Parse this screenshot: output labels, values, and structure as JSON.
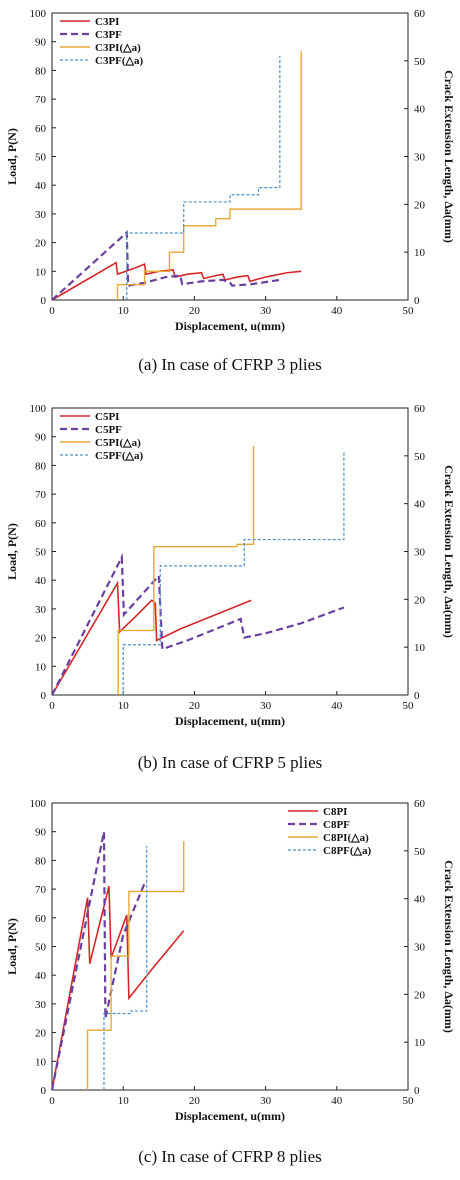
{
  "chart_data": [
    {
      "type": "line",
      "caption": "(a) In case of CFRP 3 plies",
      "xlabel": "Displacement, u(mm)",
      "ylabel": "Load, P(N)",
      "y2label": "Crack Extension Length, Δa(mm)",
      "xlim": [
        0,
        50
      ],
      "ylim": [
        0,
        100
      ],
      "y2lim": [
        0,
        60
      ],
      "xticks": [
        0,
        10,
        20,
        30,
        40,
        50
      ],
      "yticks": [
        0,
        10,
        20,
        30,
        40,
        50,
        60,
        70,
        80,
        90,
        100
      ],
      "y2ticks": [
        0,
        10,
        20,
        30,
        40,
        50,
        60
      ],
      "grid": false,
      "legend": "top-left",
      "series": [
        {
          "name": "C3PI",
          "axis": "left",
          "color": "#d62728",
          "style": "solid",
          "width": 1.6,
          "points": [
            [
              0,
              0
            ],
            [
              9,
              13
            ],
            [
              9.2,
              9
            ],
            [
              11.5,
              11
            ],
            [
              13,
              12.5
            ],
            [
              13.2,
              9
            ],
            [
              15,
              10
            ],
            [
              17,
              10.5
            ],
            [
              17.3,
              8
            ],
            [
              19,
              9
            ],
            [
              21,
              9.5
            ],
            [
              21.3,
              7.5
            ],
            [
              23,
              8.5
            ],
            [
              24,
              9
            ],
            [
              24.3,
              7
            ],
            [
              26,
              8
            ],
            [
              27.5,
              8.5
            ],
            [
              27.8,
              6.5
            ],
            [
              30,
              8
            ],
            [
              33,
              9.5
            ],
            [
              35,
              10
            ]
          ]
        },
        {
          "name": "C3PF",
          "axis": "left",
          "color": "#6b3fa0",
          "style": "dash",
          "width": 2.2,
          "points": [
            [
              0,
              0
            ],
            [
              10.5,
              23.5
            ],
            [
              10.7,
              5
            ],
            [
              13,
              6
            ],
            [
              16,
              8
            ],
            [
              18,
              8.5
            ],
            [
              18.3,
              5.5
            ],
            [
              21,
              6.5
            ],
            [
              24,
              7
            ],
            [
              25,
              6
            ],
            [
              25.3,
              5
            ],
            [
              28,
              5.5
            ],
            [
              32,
              7
            ]
          ]
        },
        {
          "name": "C3PI(△a)",
          "axis": "right",
          "color": "#e8a838",
          "style": "solid",
          "width": 1.4,
          "points": [
            [
              9.2,
              0
            ],
            [
              9.2,
              3.2
            ],
            [
              13,
              3.2
            ],
            [
              13,
              6
            ],
            [
              16.5,
              6
            ],
            [
              16.5,
              10
            ],
            [
              18.5,
              10
            ],
            [
              18.5,
              15.5
            ],
            [
              23,
              15.5
            ],
            [
              23,
              17
            ],
            [
              25,
              17
            ],
            [
              25,
              19
            ],
            [
              35,
              19
            ],
            [
              35,
              52
            ]
          ]
        },
        {
          "name": "C3PF(△a)",
          "axis": "right",
          "color": "#4a90c8",
          "style": "dot",
          "width": 1.2,
          "points": [
            [
              10.5,
              0
            ],
            [
              10.5,
              14
            ],
            [
              18.5,
              14
            ],
            [
              18.5,
              20.5
            ],
            [
              25,
              20.5
            ],
            [
              25,
              22
            ],
            [
              29,
              22
            ],
            [
              29,
              23.5
            ],
            [
              32,
              23.5
            ],
            [
              32,
              51
            ]
          ]
        }
      ]
    },
    {
      "type": "line",
      "caption": "(b) In case of CFRP 5 plies",
      "xlabel": "Displacement, u(mm)",
      "ylabel": "Load, P(N)",
      "y2label": "Crack Extension Length, Δa(mm)",
      "xlim": [
        0,
        50
      ],
      "ylim": [
        0,
        100
      ],
      "y2lim": [
        0,
        60
      ],
      "xticks": [
        0,
        10,
        20,
        30,
        40,
        50
      ],
      "yticks": [
        0,
        10,
        20,
        30,
        40,
        50,
        60,
        70,
        80,
        90,
        100
      ],
      "y2ticks": [
        0,
        10,
        20,
        30,
        40,
        50,
        60
      ],
      "grid": false,
      "legend": "top-left",
      "series": [
        {
          "name": "C5PI",
          "axis": "left",
          "color": "#d62728",
          "style": "solid",
          "width": 1.6,
          "points": [
            [
              0,
              0
            ],
            [
              9.2,
              39
            ],
            [
              9.5,
              22
            ],
            [
              12,
              28
            ],
            [
              14,
              33
            ],
            [
              14.5,
              32
            ],
            [
              14.7,
              19
            ],
            [
              18,
              23
            ],
            [
              22,
              27
            ],
            [
              26,
              31
            ],
            [
              28,
              33
            ]
          ]
        },
        {
          "name": "C5PF",
          "axis": "left",
          "color": "#6b3fa0",
          "style": "dash",
          "width": 2.2,
          "points": [
            [
              0,
              0
            ],
            [
              9.8,
              48
            ],
            [
              10.1,
              28
            ],
            [
              13,
              36
            ],
            [
              15,
              41.5
            ],
            [
              15.5,
              16
            ],
            [
              19,
              19
            ],
            [
              23,
              23
            ],
            [
              26.5,
              26.5
            ],
            [
              27,
              20
            ],
            [
              30,
              21.5
            ],
            [
              35,
              25
            ],
            [
              41,
              30.5
            ]
          ]
        },
        {
          "name": "C5PI(△a)",
          "axis": "right",
          "color": "#e8a838",
          "style": "solid",
          "width": 1.4,
          "points": [
            [
              9.3,
              0
            ],
            [
              9.3,
              13.5
            ],
            [
              14.3,
              13.5
            ],
            [
              14.3,
              31
            ],
            [
              26,
              31
            ],
            [
              26,
              31.5
            ],
            [
              28.3,
              31.5
            ],
            [
              28.3,
              52
            ]
          ]
        },
        {
          "name": "C5PF(△a)",
          "axis": "right",
          "color": "#4a90c8",
          "style": "dot",
          "width": 1.2,
          "points": [
            [
              10,
              0
            ],
            [
              10,
              10.5
            ],
            [
              15.2,
              10.5
            ],
            [
              15.2,
              27
            ],
            [
              27,
              27
            ],
            [
              27,
              32.5
            ],
            [
              41,
              32.5
            ],
            [
              41,
              51
            ]
          ]
        }
      ]
    },
    {
      "type": "line",
      "caption": "(c) In case of CFRP 8 plies",
      "xlabel": "Displacement, u(mm)",
      "ylabel": "Load, P(N)",
      "y2label": "Crack Extension Length, Δa(mm)",
      "xlim": [
        0,
        50
      ],
      "ylim": [
        0,
        100
      ],
      "y2lim": [
        0,
        60
      ],
      "xticks": [
        0,
        10,
        20,
        30,
        40,
        50
      ],
      "yticks": [
        0,
        10,
        20,
        30,
        40,
        50,
        60,
        70,
        80,
        90,
        100
      ],
      "y2ticks": [
        0,
        10,
        20,
        30,
        40,
        50,
        60
      ],
      "grid": false,
      "legend": "top-right",
      "series": [
        {
          "name": "C8PI",
          "axis": "left",
          "color": "#d62728",
          "style": "solid",
          "width": 1.6,
          "points": [
            [
              0,
              0
            ],
            [
              5,
              67
            ],
            [
              5.3,
              44
            ],
            [
              8,
              71
            ],
            [
              8.3,
              46
            ],
            [
              10.5,
              61
            ],
            [
              10.8,
              32
            ],
            [
              14,
              42
            ],
            [
              18.5,
              55.5
            ]
          ]
        },
        {
          "name": "C8PF",
          "axis": "left",
          "color": "#6b3fa0",
          "style": "dash",
          "width": 2.2,
          "points": [
            [
              0,
              0
            ],
            [
              7.3,
              90
            ],
            [
              7.5,
              25
            ],
            [
              10,
              54
            ],
            [
              13,
              72
            ]
          ]
        },
        {
          "name": "C8PI(△a)",
          "axis": "right",
          "color": "#e8a838",
          "style": "solid",
          "width": 1.4,
          "points": [
            [
              5,
              0
            ],
            [
              5,
              12.5
            ],
            [
              8.3,
              12.5
            ],
            [
              8.3,
              28
            ],
            [
              10.8,
              28
            ],
            [
              10.8,
              41.5
            ],
            [
              18.5,
              41.5
            ],
            [
              18.5,
              52
            ]
          ]
        },
        {
          "name": "C8PF(△a)",
          "axis": "right",
          "color": "#4a90c8",
          "style": "dot",
          "width": 1.2,
          "points": [
            [
              7.3,
              0
            ],
            [
              7.3,
              16
            ],
            [
              11,
              16
            ],
            [
              11,
              16.5
            ],
            [
              13.3,
              16.5
            ],
            [
              13.3,
              51
            ]
          ]
        }
      ]
    }
  ]
}
